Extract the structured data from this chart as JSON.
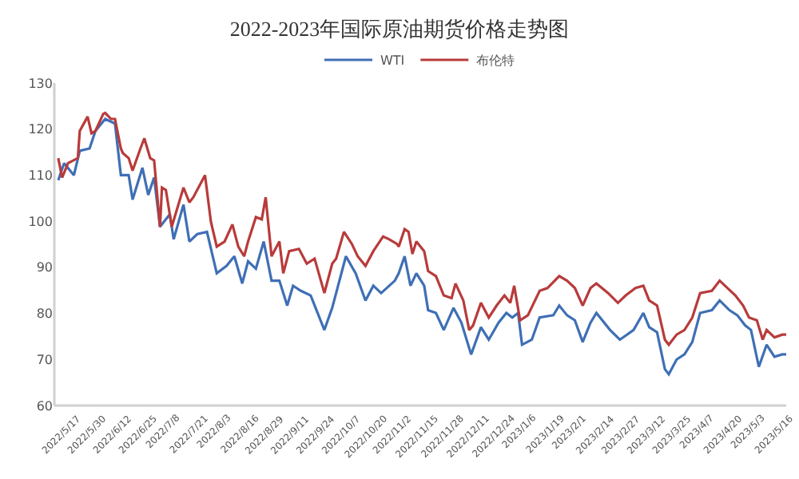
{
  "chart_data": {
    "type": "line",
    "title": "2022-2023年国际原油期货价格走势图",
    "legend": "top",
    "grid": false,
    "marker": "none",
    "line_style": "solid",
    "xlim": [
      "2022-05-14",
      "2023-05-23"
    ],
    "xticks": [
      {
        "value": "2022-05-17",
        "label": "2022/5/17"
      },
      {
        "value": "2022-05-30",
        "label": "2022/5/30"
      },
      {
        "value": "2022-06-12",
        "label": "2022/6/12"
      },
      {
        "value": "2022-06-25",
        "label": "2022/6/25"
      },
      {
        "value": "2022-07-08",
        "label": "2022/7/8"
      },
      {
        "value": "2022-07-21",
        "label": "2022/7/21"
      },
      {
        "value": "2022-08-03",
        "label": "2022/8/3"
      },
      {
        "value": "2022-08-16",
        "label": "2022/8/16"
      },
      {
        "value": "2022-08-29",
        "label": "2022/8/29"
      },
      {
        "value": "2022-09-11",
        "label": "2022/9/11"
      },
      {
        "value": "2022-09-24",
        "label": "2022/9/24"
      },
      {
        "value": "2022-10-07",
        "label": "2022/10/7"
      },
      {
        "value": "2022-10-20",
        "label": "2022/10/20"
      },
      {
        "value": "2022-11-02",
        "label": "2022/11/2"
      },
      {
        "value": "2022-11-15",
        "label": "2022/11/15"
      },
      {
        "value": "2022-11-28",
        "label": "2022/11/28"
      },
      {
        "value": "2022-12-11",
        "label": "2022/12/11"
      },
      {
        "value": "2022-12-24",
        "label": "2022/12/24"
      },
      {
        "value": "2023-01-06",
        "label": "2023/1/6"
      },
      {
        "value": "2023-01-19",
        "label": "2023/1/19"
      },
      {
        "value": "2023-02-01",
        "label": "2023/2/1"
      },
      {
        "value": "2023-02-14",
        "label": "2023/2/14"
      },
      {
        "value": "2023-02-27",
        "label": "2023/2/27"
      },
      {
        "value": "2023-03-12",
        "label": "2023/3/12"
      },
      {
        "value": "2023-03-25",
        "label": "2023/3/25"
      },
      {
        "value": "2023-04-07",
        "label": "2023/4/7"
      },
      {
        "value": "2023-04-20",
        "label": "2023/4/20"
      },
      {
        "value": "2023-05-03",
        "label": "2023/5/3"
      },
      {
        "value": "2023-05-16",
        "label": "2023/5/16"
      }
    ],
    "ylim": [
      60,
      130
    ],
    "yticks": [
      60,
      70,
      80,
      90,
      100,
      110,
      120,
      130
    ],
    "series": [
      {
        "name": "WTI",
        "color": "#3f6fb5",
        "x": [
          "2022-05-16",
          "2022-05-19",
          "2022-05-24",
          "2022-05-27",
          "2022-06-01",
          "2022-06-04",
          "2022-06-09",
          "2022-06-14",
          "2022-06-17",
          "2022-06-21",
          "2022-06-23",
          "2022-06-28",
          "2022-07-01",
          "2022-07-04",
          "2022-07-07",
          "2022-07-12",
          "2022-07-14",
          "2022-07-19",
          "2022-07-22",
          "2022-07-26",
          "2022-07-31",
          "2022-08-05",
          "2022-08-10",
          "2022-08-14",
          "2022-08-18",
          "2022-08-21",
          "2022-08-25",
          "2022-08-29",
          "2022-09-02",
          "2022-09-06",
          "2022-09-10",
          "2022-09-13",
          "2022-09-17",
          "2022-09-22",
          "2022-09-29",
          "2022-10-03",
          "2022-10-06",
          "2022-10-10",
          "2022-10-15",
          "2022-10-20",
          "2022-10-24",
          "2022-10-28",
          "2022-11-04",
          "2022-11-06",
          "2022-11-09",
          "2022-11-12",
          "2022-11-15",
          "2022-11-19",
          "2022-11-21",
          "2022-11-25",
          "2022-11-29",
          "2022-12-04",
          "2022-12-08",
          "2022-12-13",
          "2022-12-18",
          "2022-12-22",
          "2022-12-27",
          "2022-12-31",
          "2023-01-03",
          "2023-01-06",
          "2023-01-08",
          "2023-01-13",
          "2023-01-17",
          "2023-01-24",
          "2023-01-27",
          "2023-01-31",
          "2023-02-04",
          "2023-02-08",
          "2023-02-12",
          "2023-02-15",
          "2023-02-22",
          "2023-02-27",
          "2023-03-06",
          "2023-03-11",
          "2023-03-14",
          "2023-03-18",
          "2023-03-22",
          "2023-03-24",
          "2023-03-28",
          "2023-04-01",
          "2023-04-05",
          "2023-04-09",
          "2023-04-15",
          "2023-04-19",
          "2023-04-24",
          "2023-04-28",
          "2023-05-02",
          "2023-05-05",
          "2023-05-09",
          "2023-05-13",
          "2023-05-17",
          "2023-05-21",
          "2023-05-23"
        ],
        "values": [
          108.9,
          112.6,
          110,
          115.3,
          115.8,
          119.6,
          122.2,
          121.2,
          110,
          110,
          104.7,
          111.6,
          105.7,
          109.5,
          98.8,
          101.5,
          96.1,
          103.6,
          95.6,
          97.2,
          97.7,
          88.7,
          90.3,
          92.4,
          86.5,
          91.3,
          89.7,
          95.6,
          87.1,
          87.1,
          81.7,
          86.0,
          84.9,
          83.9,
          76.4,
          81.2,
          86.0,
          92.4,
          88.7,
          82.8,
          86.0,
          84.4,
          87.1,
          88.7,
          92.4,
          86.0,
          88.7,
          86.0,
          80.7,
          80.1,
          76.4,
          81.2,
          78.0,
          71.1,
          77.0,
          74.3,
          78.0,
          80.1,
          79.1,
          80.1,
          73.2,
          74.3,
          79.1,
          79.6,
          81.7,
          79.6,
          78.5,
          73.8,
          78.0,
          80.1,
          76.4,
          74.3,
          76.4,
          80.1,
          77.0,
          75.9,
          67.9,
          66.8,
          70.0,
          71.1,
          73.8,
          80.1,
          80.7,
          82.8,
          80.7,
          79.6,
          77.4,
          76.4,
          68.4,
          73.2,
          70.6,
          71.1,
          71.1
        ]
      },
      {
        "name": "布伦特",
        "color": "#b83b3b",
        "x": [
          "2022-05-16",
          "2022-05-18",
          "2022-05-21",
          "2022-05-26",
          "2022-05-27",
          "2022-05-31",
          "2022-06-02",
          "2022-06-04",
          "2022-06-08",
          "2022-06-09",
          "2022-06-12",
          "2022-06-14",
          "2022-06-17",
          "2022-06-18",
          "2022-06-21",
          "2022-06-23",
          "2022-06-27",
          "2022-06-29",
          "2022-07-02",
          "2022-07-04",
          "2022-07-07",
          "2022-07-08",
          "2022-07-10",
          "2022-07-13",
          "2022-07-19",
          "2022-07-22",
          "2022-07-24",
          "2022-07-30",
          "2022-08-02",
          "2022-08-05",
          "2022-08-09",
          "2022-08-13",
          "2022-08-16",
          "2022-08-19",
          "2022-08-21",
          "2022-08-25",
          "2022-08-28",
          "2022-08-30",
          "2022-09-02",
          "2022-09-06",
          "2022-09-08",
          "2022-09-11",
          "2022-09-16",
          "2022-09-20",
          "2022-09-24",
          "2022-09-29",
          "2022-10-03",
          "2022-10-05",
          "2022-10-09",
          "2022-10-13",
          "2022-10-16",
          "2022-10-20",
          "2022-10-24",
          "2022-10-29",
          "2022-11-01",
          "2022-11-05",
          "2022-11-06",
          "2022-11-09",
          "2022-11-11",
          "2022-11-13",
          "2022-11-15",
          "2022-11-19",
          "2022-11-21",
          "2022-11-25",
          "2022-11-29",
          "2022-12-03",
          "2022-12-05",
          "2022-12-09",
          "2022-12-12",
          "2022-12-14",
          "2022-12-18",
          "2022-12-22",
          "2022-12-26",
          "2022-12-30",
          "2023-01-02",
          "2023-01-04",
          "2023-01-07",
          "2023-01-11",
          "2023-01-17",
          "2023-01-21",
          "2023-01-27",
          "2023-01-31",
          "2023-02-04",
          "2023-02-08",
          "2023-02-12",
          "2023-02-15",
          "2023-02-21",
          "2023-02-26",
          "2023-03-02",
          "2023-03-07",
          "2023-03-11",
          "2023-03-14",
          "2023-03-18",
          "2023-03-22",
          "2023-03-24",
          "2023-03-28",
          "2023-04-01",
          "2023-04-05",
          "2023-04-09",
          "2023-04-15",
          "2023-04-19",
          "2023-04-23",
          "2023-04-27",
          "2023-05-01",
          "2023-05-04",
          "2023-05-08",
          "2023-05-11",
          "2023-05-13",
          "2023-05-17",
          "2023-05-21",
          "2023-05-23"
        ],
        "values": [
          113.7,
          109.5,
          112.6,
          113.7,
          119.6,
          122.7,
          119.1,
          119.6,
          123.3,
          123.5,
          122.2,
          122.2,
          115.8,
          114.8,
          113.7,
          111,
          115.8,
          118,
          113.7,
          113.2,
          98.8,
          107.3,
          106.8,
          98.8,
          107.3,
          104.1,
          105.2,
          110,
          99.9,
          94.5,
          95.6,
          99.3,
          94.5,
          92.4,
          95.6,
          100.9,
          100.4,
          105.2,
          92.4,
          95.6,
          88.7,
          93.5,
          94.0,
          90.8,
          91.9,
          84.4,
          90.8,
          91.9,
          97.7,
          95.1,
          92.4,
          90.3,
          93.5,
          96.7,
          96.1,
          95.1,
          94.5,
          98.3,
          97.7,
          92.9,
          95.6,
          93.5,
          89.2,
          88.1,
          83.9,
          83.3,
          86.5,
          82.8,
          76.4,
          77.4,
          82.3,
          79.1,
          81.7,
          83.9,
          82.3,
          86.0,
          78.5,
          79.6,
          84.9,
          85.5,
          88.1,
          87.1,
          85.5,
          81.7,
          85.5,
          86.5,
          84.4,
          82.3,
          83.9,
          85.5,
          86.0,
          82.8,
          81.7,
          74.3,
          73.2,
          75.4,
          76.4,
          79.1,
          84.4,
          84.9,
          87.1,
          85.5,
          83.9,
          81.7,
          79.1,
          78.5,
          74.3,
          76.4,
          74.8,
          75.4,
          75.4
        ]
      }
    ]
  }
}
